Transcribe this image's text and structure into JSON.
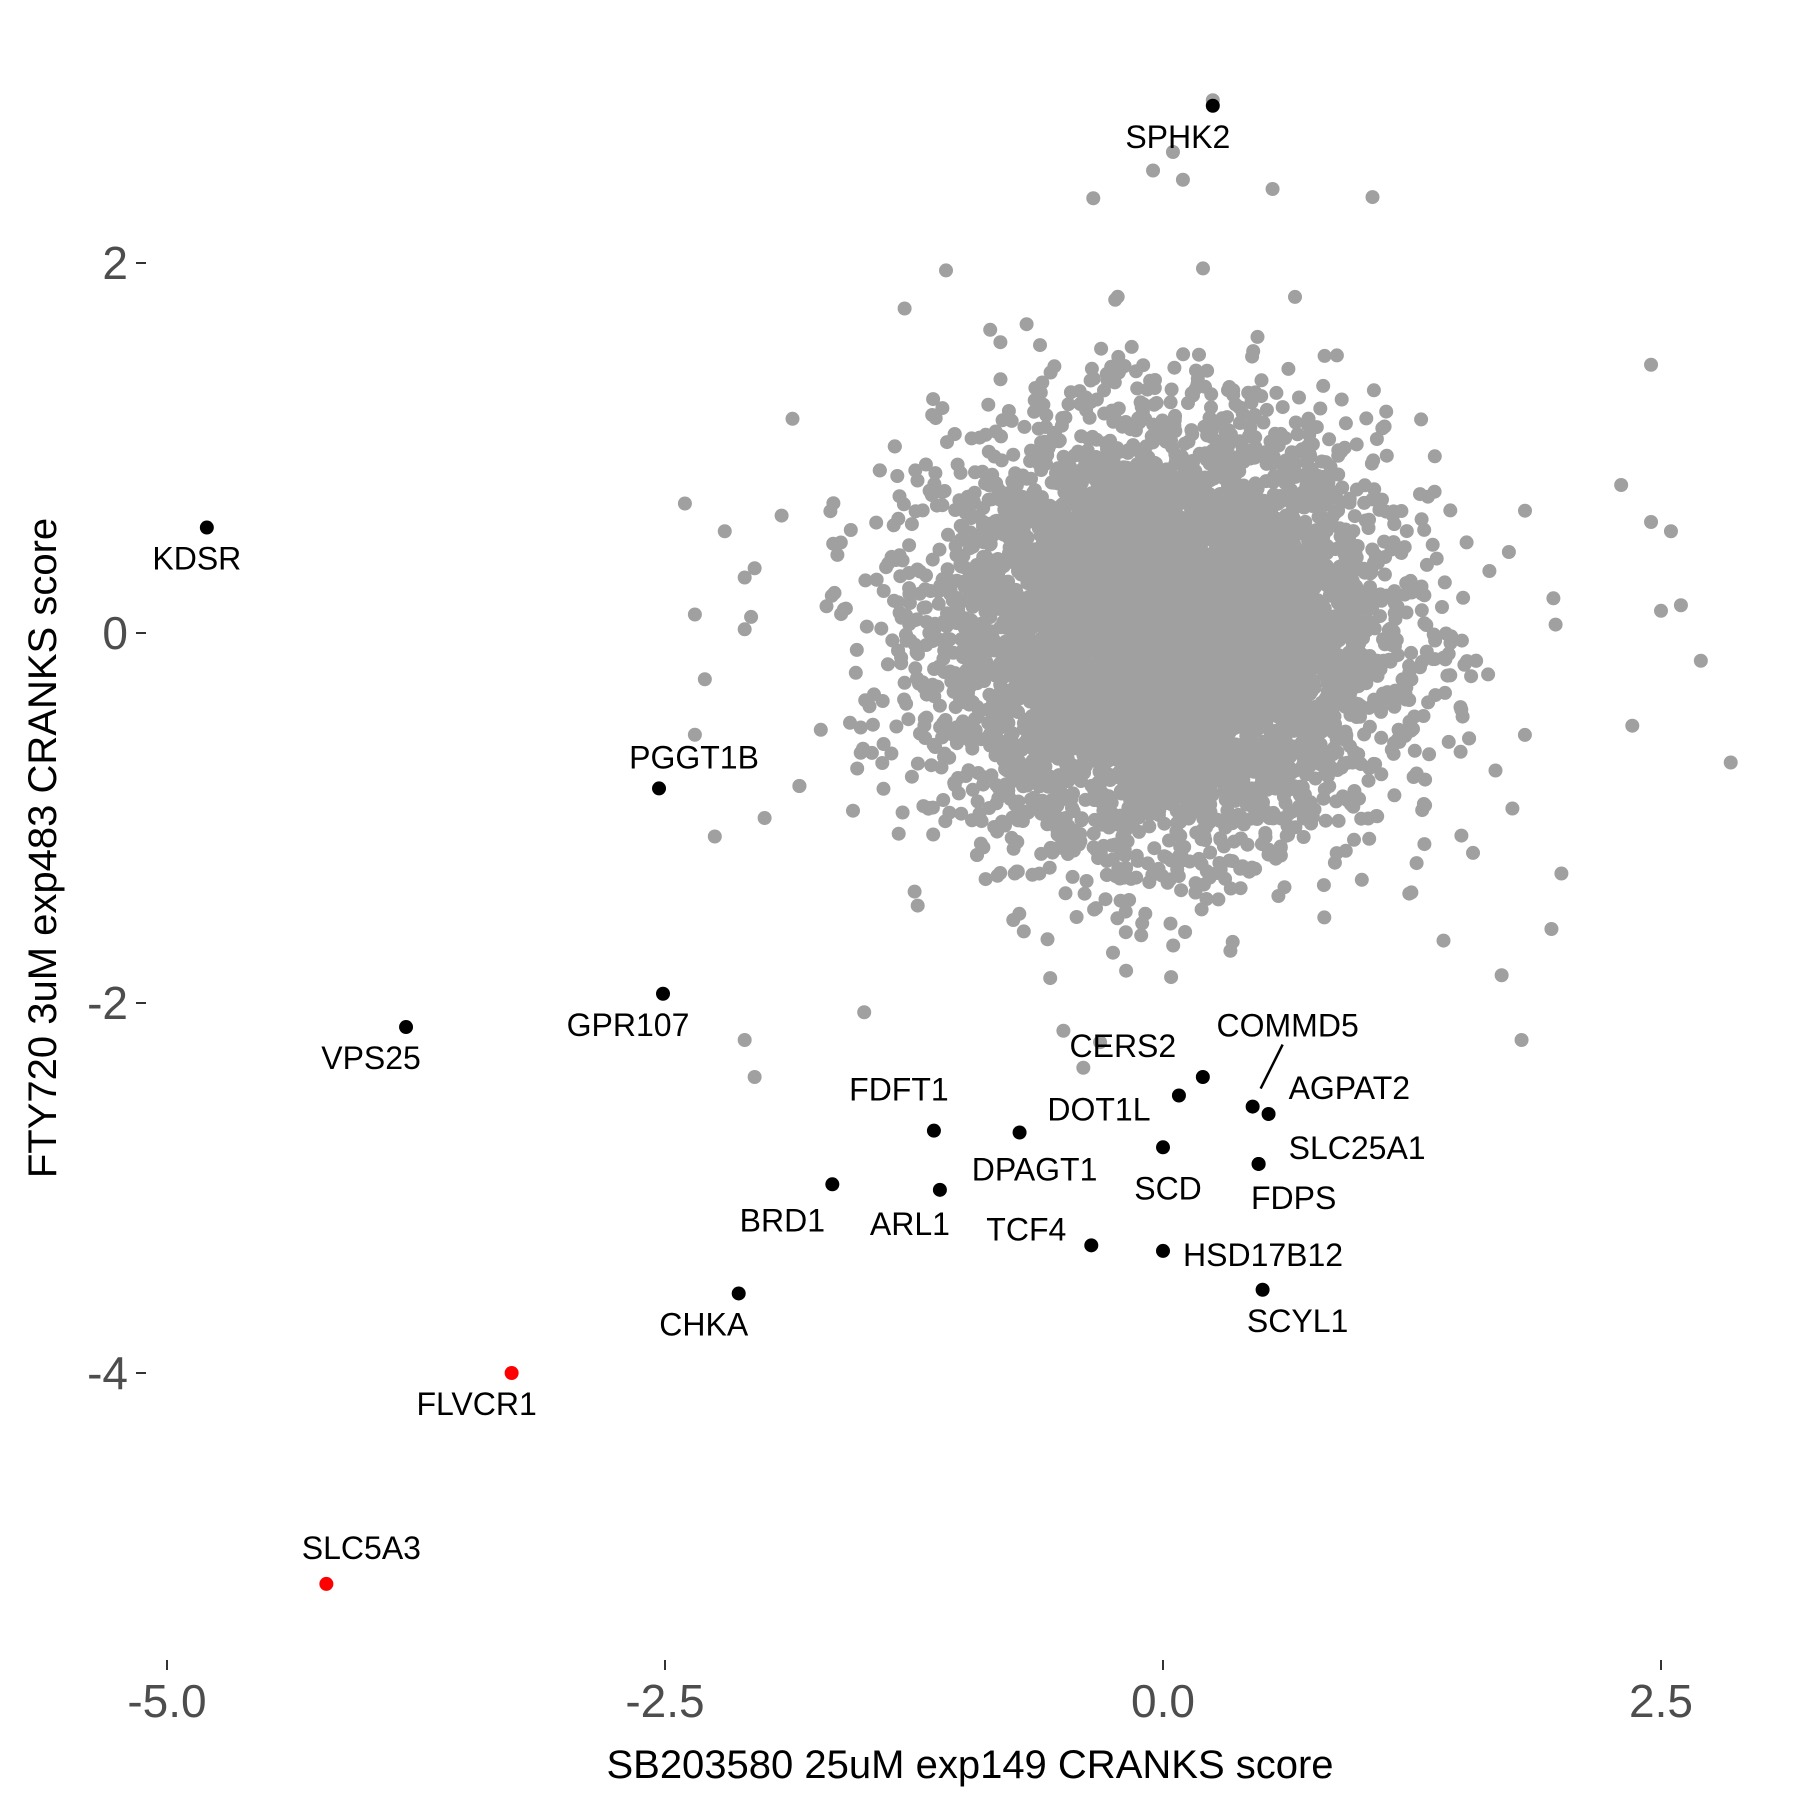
{
  "chart_data": {
    "type": "scatter",
    "xlabel": "SB203580 25uM exp149 CRANKS score",
    "ylabel": "FTY720 3uM exp483 CRANKS score",
    "xlim": [
      -5.0,
      2.75
    ],
    "ylim": [
      -5.4,
      2.95
    ],
    "x_ticks": [
      -5.0,
      -2.5,
      0.0,
      2.5
    ],
    "x_tick_labels": [
      "-5.0",
      "-2.5",
      "0.0",
      "2.5"
    ],
    "y_ticks": [
      2,
      0,
      -2,
      -4
    ],
    "y_tick_labels": [
      "2",
      "0",
      "-2",
      "-4"
    ],
    "grid": false,
    "legend": "none",
    "colors": {
      "background_genes": "#a0a0a0",
      "highlighted_genes": "#000000",
      "top_genes": "#ff0000",
      "tick_labels": "#4d4d4d"
    },
    "background_cloud": {
      "description_color": "#a0a0a0",
      "center": [
        0.0,
        0.0
      ],
      "sd_x": 0.55,
      "sd_y": 0.55,
      "n_points": 7000
    },
    "background_outliers": [
      [
        -2.4,
        0.7
      ],
      [
        -2.2,
        0.55
      ],
      [
        -2.1,
        0.3
      ],
      [
        -2.05,
        0.35
      ],
      [
        -2.35,
        0.1
      ],
      [
        -2.1,
        0.02
      ],
      [
        -2.3,
        -0.25
      ],
      [
        -2.35,
        -0.55
      ],
      [
        -2.25,
        -1.1
      ],
      [
        -2.0,
        -1.0
      ],
      [
        -2.1,
        -2.2
      ],
      [
        -2.05,
        -2.4
      ],
      [
        -1.5,
        -2.05
      ],
      [
        0.25,
        2.88
      ],
      [
        0.05,
        2.6
      ],
      [
        -0.05,
        2.5
      ],
      [
        0.1,
        2.45
      ],
      [
        0.55,
        2.4
      ],
      [
        -0.35,
        2.35
      ],
      [
        2.45,
        1.45
      ],
      [
        2.3,
        0.8
      ],
      [
        2.55,
        0.55
      ],
      [
        2.45,
        0.6
      ],
      [
        2.6,
        0.15
      ],
      [
        2.7,
        -0.15
      ],
      [
        2.85,
        -0.7
      ],
      [
        2.5,
        0.12
      ],
      [
        1.8,
        -2.2
      ],
      [
        1.95,
        -1.6
      ],
      [
        2.0,
        -1.3
      ],
      [
        1.7,
        -1.85
      ],
      [
        -0.4,
        -2.35
      ],
      [
        -0.5,
        -2.15
      ]
    ],
    "highlighted_points": [
      {
        "label": "SPHK2",
        "x": 0.25,
        "y": 2.85,
        "color": "#000000"
      },
      {
        "label": "KDSR",
        "x": -4.8,
        "y": 0.57,
        "color": "#000000"
      },
      {
        "label": "PGGT1B",
        "x": -2.53,
        "y": -0.84,
        "color": "#000000"
      },
      {
        "label": "GPR107",
        "x": -2.51,
        "y": -1.95,
        "color": "#000000"
      },
      {
        "label": "VPS25",
        "x": -3.8,
        "y": -2.13,
        "color": "#000000"
      },
      {
        "label": "COMMD5",
        "x": 0.45,
        "y": -2.56,
        "color": "#000000"
      },
      {
        "label": "CERS2",
        "x": 0.2,
        "y": -2.4,
        "color": "#000000"
      },
      {
        "label": "AGPAT2",
        "x": 0.53,
        "y": -2.6,
        "color": "#000000"
      },
      {
        "label": "DOT1L",
        "x": 0.08,
        "y": -2.5,
        "color": "#000000"
      },
      {
        "label": "FDFT1",
        "x": -1.15,
        "y": -2.69,
        "color": "#000000"
      },
      {
        "label": "DPAGT1",
        "x": -0.72,
        "y": -2.7,
        "color": "#000000"
      },
      {
        "label": "SLC25A1",
        "x": 0.48,
        "y": -2.87,
        "color": "#000000"
      },
      {
        "label": "SCD",
        "x": 0.0,
        "y": -2.78,
        "color": "#000000"
      },
      {
        "label": "FDPS",
        "x": 0.48,
        "y": -2.87,
        "color": "#000000"
      },
      {
        "label": "BRD1",
        "x": -1.66,
        "y": -2.98,
        "color": "#000000"
      },
      {
        "label": "ARL1",
        "x": -1.12,
        "y": -3.01,
        "color": "#000000"
      },
      {
        "label": "TCF4",
        "x": -0.36,
        "y": -3.31,
        "color": "#000000"
      },
      {
        "label": "HSD17B12",
        "x": 0.0,
        "y": -3.34,
        "color": "#000000"
      },
      {
        "label": "SCYL1",
        "x": 0.5,
        "y": -3.55,
        "color": "#000000"
      },
      {
        "label": "CHKA",
        "x": -2.13,
        "y": -3.57,
        "color": "#000000"
      },
      {
        "label": "FLVCR1",
        "x": -3.27,
        "y": -4.0,
        "color": "#ff0000"
      },
      {
        "label": "SLC5A3",
        "x": -4.2,
        "y": -5.14,
        "color": "#ff0000"
      }
    ]
  }
}
